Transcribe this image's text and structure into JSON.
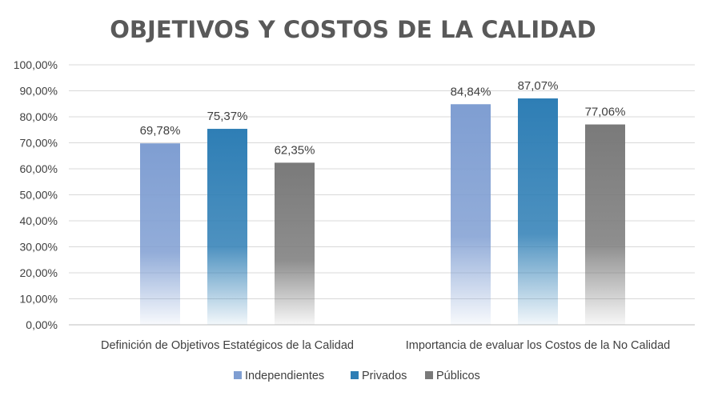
{
  "chart_data": {
    "type": "bar",
    "title": "OBJETIVOS Y COSTOS DE LA CALIDAD",
    "xlabel": "",
    "ylabel": "",
    "ylim": [
      0,
      100
    ],
    "ytick_step": 10,
    "ytick_labels": [
      "0,00%",
      "10,00%",
      "20,00%",
      "30,00%",
      "40,00%",
      "50,00%",
      "60,00%",
      "70,00%",
      "80,00%",
      "90,00%",
      "100,00%"
    ],
    "grid": true,
    "legend_position": "bottom",
    "categories": [
      "Definición de Objetivos Estatégicos de la Calidad",
      "Importancia de  evaluar los Costos de la No Calidad"
    ],
    "series": [
      {
        "name": "Independientes",
        "color": "#7F9ED2",
        "values": [
          69.78,
          84.84
        ],
        "labels": [
          "69,78%",
          "84,84%"
        ]
      },
      {
        "name": "Privados",
        "color": "#2E7EB5",
        "values": [
          75.37,
          87.07
        ],
        "labels": [
          "75,37%",
          "87,07%"
        ]
      },
      {
        "name": "Públicos",
        "color": "#7A7A7A",
        "values": [
          62.35,
          77.06
        ],
        "labels": [
          "62,35%",
          "77,06%"
        ]
      }
    ]
  }
}
